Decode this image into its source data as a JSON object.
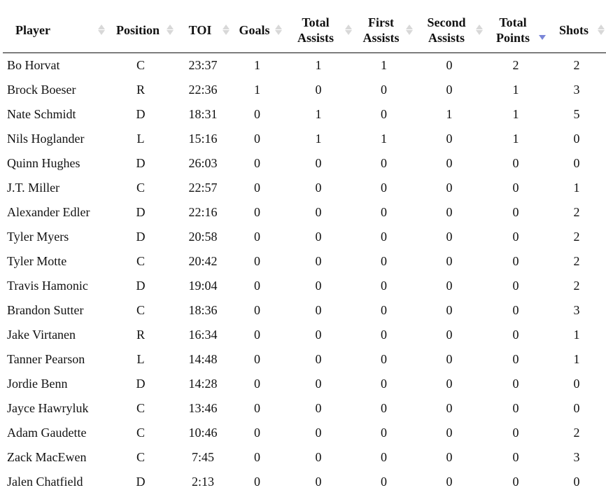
{
  "table": {
    "columns": [
      {
        "label": "Player",
        "sort": "none"
      },
      {
        "label": "Position",
        "sort": "none"
      },
      {
        "label": "TOI",
        "sort": "none"
      },
      {
        "label": "Goals",
        "sort": "none"
      },
      {
        "label": "Total Assists",
        "sort": "none"
      },
      {
        "label": "First Assists",
        "sort": "none"
      },
      {
        "label": "Second Assists",
        "sort": "none"
      },
      {
        "label": "Total Points",
        "sort": "descending"
      },
      {
        "label": "Shots",
        "sort": "none"
      }
    ],
    "sort_active_color": "#7a86d8",
    "rows": [
      [
        "Bo Horvat",
        "C",
        "23:37",
        "1",
        "1",
        "1",
        "0",
        "2",
        "2"
      ],
      [
        "Brock Boeser",
        "R",
        "22:36",
        "1",
        "0",
        "0",
        "0",
        "1",
        "3"
      ],
      [
        "Nate Schmidt",
        "D",
        "18:31",
        "0",
        "1",
        "0",
        "1",
        "1",
        "5"
      ],
      [
        "Nils Hoglander",
        "L",
        "15:16",
        "0",
        "1",
        "1",
        "0",
        "1",
        "0"
      ],
      [
        "Quinn Hughes",
        "D",
        "26:03",
        "0",
        "0",
        "0",
        "0",
        "0",
        "0"
      ],
      [
        "J.T. Miller",
        "C",
        "22:57",
        "0",
        "0",
        "0",
        "0",
        "0",
        "1"
      ],
      [
        "Alexander Edler",
        "D",
        "22:16",
        "0",
        "0",
        "0",
        "0",
        "0",
        "2"
      ],
      [
        "Tyler Myers",
        "D",
        "20:58",
        "0",
        "0",
        "0",
        "0",
        "0",
        "2"
      ],
      [
        "Tyler Motte",
        "C",
        "20:42",
        "0",
        "0",
        "0",
        "0",
        "0",
        "2"
      ],
      [
        "Travis Hamonic",
        "D",
        "19:04",
        "0",
        "0",
        "0",
        "0",
        "0",
        "2"
      ],
      [
        "Brandon Sutter",
        "C",
        "18:36",
        "0",
        "0",
        "0",
        "0",
        "0",
        "3"
      ],
      [
        "Jake Virtanen",
        "R",
        "16:34",
        "0",
        "0",
        "0",
        "0",
        "0",
        "1"
      ],
      [
        "Tanner Pearson",
        "L",
        "14:48",
        "0",
        "0",
        "0",
        "0",
        "0",
        "1"
      ],
      [
        "Jordie Benn",
        "D",
        "14:28",
        "0",
        "0",
        "0",
        "0",
        "0",
        "0"
      ],
      [
        "Jayce Hawryluk",
        "C",
        "13:46",
        "0",
        "0",
        "0",
        "0",
        "0",
        "0"
      ],
      [
        "Adam Gaudette",
        "C",
        "10:46",
        "0",
        "0",
        "0",
        "0",
        "0",
        "2"
      ],
      [
        "Zack MacEwen",
        "C",
        "7:45",
        "0",
        "0",
        "0",
        "0",
        "0",
        "3"
      ],
      [
        "Jalen Chatfield",
        "D",
        "2:13",
        "0",
        "0",
        "0",
        "0",
        "0",
        "0"
      ]
    ]
  }
}
